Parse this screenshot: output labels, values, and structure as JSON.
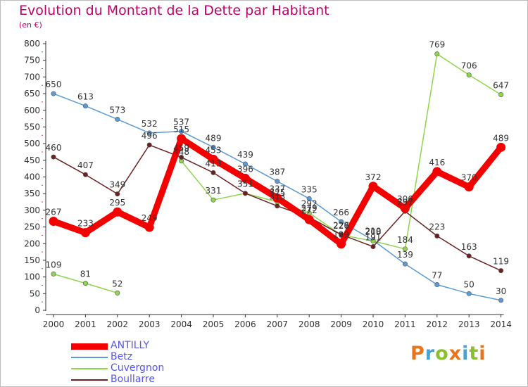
{
  "title": "Evolution du Montant de la Dette par Habitant",
  "subtitle": "(en €)",
  "logo": {
    "letters": [
      "P",
      "r",
      "o",
      "x",
      "i",
      "t",
      "i"
    ],
    "colors": [
      "#e6771e",
      "#4aa2d4",
      "#8bbf2f",
      "#e6771e",
      "#4aa2d4",
      "#8bbf2f",
      "#e6771e"
    ]
  },
  "chart_data": {
    "type": "line",
    "x": [
      "2000",
      "2001",
      "2002",
      "2003",
      "2004",
      "2005",
      "2006",
      "2007",
      "2008",
      "2009",
      "2010",
      "2011",
      "2012",
      "2013",
      "2014"
    ],
    "ylim": [
      0,
      800
    ],
    "yticks": [
      0,
      50,
      100,
      150,
      200,
      250,
      300,
      350,
      400,
      450,
      500,
      550,
      600,
      650,
      700,
      750,
      800
    ],
    "grid": false,
    "legend_position": "bottom-left",
    "series": [
      {
        "name": "ANTILLY",
        "color": "#f40000",
        "legend_text_color": "#5555ee",
        "values": [
          267,
          233,
          295,
          249,
          515,
          453,
          396,
          337,
          272,
          199,
          372,
          306,
          416,
          370,
          489
        ],
        "labels": [
          "267",
          "233",
          "295",
          "249",
          "515",
          "453",
          "396",
          "337",
          "272",
          "199",
          "372",
          "306",
          "416",
          "370",
          "489"
        ]
      },
      {
        "name": "Betz",
        "color": "#5b9bd5",
        "legend_text_color": "#5555ee",
        "values": [
          650,
          613,
          573,
          532,
          537,
          489,
          439,
          387,
          335,
          266,
          210,
          139,
          77,
          50,
          30
        ],
        "labels": [
          "650",
          "613",
          "573",
          "532",
          "537",
          "489",
          "439",
          "387",
          "335",
          "266",
          "210",
          "139",
          "77",
          "50",
          "30"
        ]
      },
      {
        "name": "Cuvergnon",
        "color": "#8fd64e",
        "legend_text_color": "#5555ee",
        "values": [
          109,
          81,
          52,
          null,
          448,
          331,
          351,
          325,
          292,
          226,
          208,
          184,
          769,
          706,
          647
        ],
        "labels": [
          "109",
          "81",
          "52",
          "",
          "448",
          "331",
          "351",
          "325",
          "292",
          "226",
          "208",
          "184",
          "769",
          "706",
          "647"
        ]
      },
      {
        "name": "Boullarre",
        "color": "#6b2121",
        "legend_text_color": "#5555ee",
        "values": [
          460,
          407,
          349,
          496,
          459,
          413,
          351,
          313,
          279,
          227,
          191,
          297,
          223,
          163,
          119
        ],
        "labels": [
          "460",
          "407",
          "349",
          "496",
          "459",
          "413",
          "351",
          "313",
          "279",
          "227",
          "191",
          "297",
          "223",
          "163",
          "119"
        ]
      }
    ]
  }
}
